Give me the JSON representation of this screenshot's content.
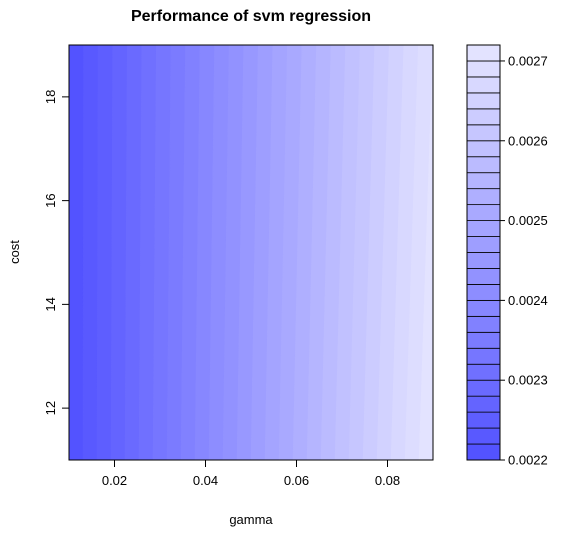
{
  "chart_data": {
    "type": "heatmap",
    "subtype": "filled-contour",
    "title": "Performance of svm regression",
    "xlabel": "gamma",
    "ylabel": "cost",
    "xlim": [
      0.01,
      0.09
    ],
    "ylim": [
      11,
      19
    ],
    "x_ticks": [
      0.02,
      0.04,
      0.06,
      0.08
    ],
    "x_tick_labels": [
      "0.02",
      "0.04",
      "0.06",
      "0.08"
    ],
    "y_ticks": [
      12,
      14,
      16,
      18
    ],
    "y_tick_labels": [
      "12",
      "14",
      "16",
      "18"
    ],
    "x": [
      0.01,
      0.09
    ],
    "y": [
      11,
      19
    ],
    "z": [
      [
        0.0022,
        0.00272
      ],
      [
        0.0022,
        0.0027
      ]
    ],
    "colorbar": {
      "range": [
        0.0022,
        0.00272
      ],
      "levels": 26,
      "ticks": [
        0.0022,
        0.0023,
        0.0024,
        0.0025,
        0.0026,
        0.0027
      ],
      "tick_labels": [
        "0.0022",
        "0.0023",
        "0.0024",
        "0.0025",
        "0.0026",
        "0.0027"
      ],
      "color_low": "#5050ff",
      "color_high": "#e6e6ff"
    },
    "grid": false,
    "legend": "right"
  }
}
